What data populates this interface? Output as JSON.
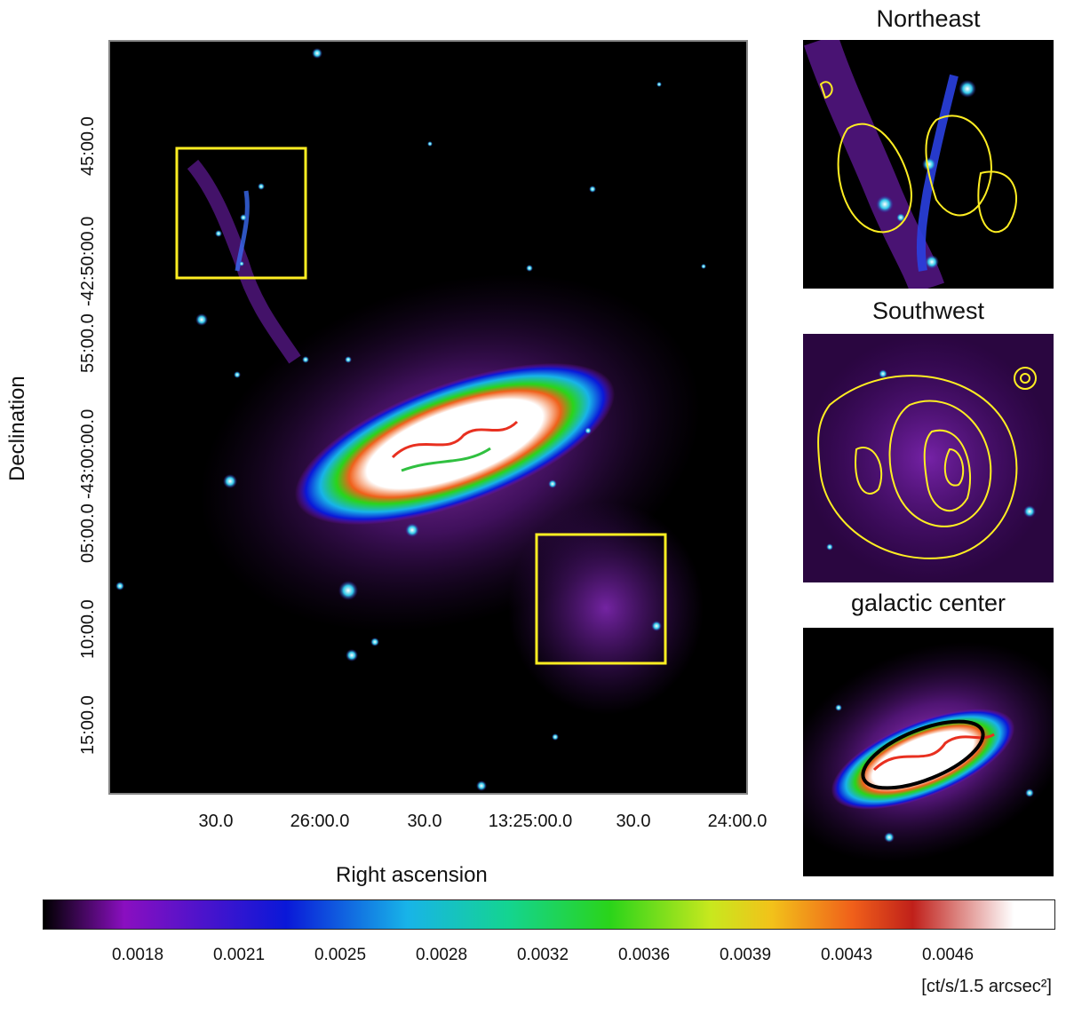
{
  "main_panel": {
    "x_axis_title": "Right ascension",
    "y_axis_title": "Declination",
    "x_ticks": [
      "30.0",
      "26:00.0",
      "30.0",
      "13:25:00.0",
      "30.0",
      "24:00.0"
    ],
    "y_ticks": [
      "15:00.0",
      "10:00.0",
      "05:00.0",
      "-43:00:00.0",
      "55:00.0",
      "-42:50:00.0",
      "45:00.0"
    ]
  },
  "insets": [
    {
      "title": "Northeast"
    },
    {
      "title": "Southwest"
    },
    {
      "title": "galactic center"
    }
  ],
  "colorbar": {
    "ticks": [
      "0.0018",
      "0.0021",
      "0.0025",
      "0.0028",
      "0.0032",
      "0.0036",
      "0.0039",
      "0.0043",
      "0.0046"
    ],
    "unit": "[ct/s/1.5 arcsec²]",
    "colors": [
      "#000000",
      "#8a0fc0",
      "#0a18d8",
      "#18b4e8",
      "#14d490",
      "#2ad41a",
      "#c8e81e",
      "#f2c21a",
      "#f0601a",
      "#c0201a",
      "#ffffff"
    ]
  },
  "overlay_colors": {
    "boxes": "#ffee22",
    "contours": "#ffee22",
    "ellipse": "#000000"
  }
}
